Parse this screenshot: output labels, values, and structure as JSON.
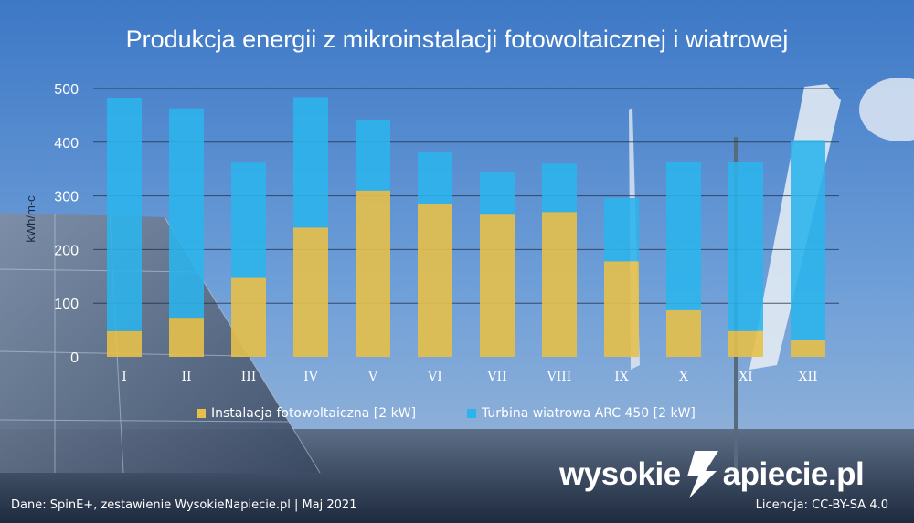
{
  "chart_data": {
    "type": "bar",
    "stacked": true,
    "title": "Produkcja energii z mikroinstalacji fotowoltaicznej i wiatrowej",
    "ylabel": "kWh/m-c",
    "xlabel": "",
    "ylim": [
      0,
      500
    ],
    "yticks": [
      0,
      100,
      200,
      300,
      400,
      500
    ],
    "grid": true,
    "legend_position": "bottom",
    "categories": [
      "I",
      "II",
      "III",
      "IV",
      "V",
      "VI",
      "VII",
      "VIII",
      "IX",
      "X",
      "XI",
      "XII"
    ],
    "series": [
      {
        "name": "Instalacja fotowoltaiczna [2 kW]",
        "color": "#e6c04a",
        "values": [
          48,
          73,
          147,
          241,
          310,
          285,
          265,
          270,
          178,
          87,
          48,
          32
        ]
      },
      {
        "name": "Turbina wiatrowa ARC 450 [2 kW]",
        "color": "#2bb4ec",
        "values": [
          435,
          390,
          215,
          243,
          132,
          98,
          80,
          90,
          118,
          277,
          315,
          372
        ]
      }
    ]
  },
  "footer": {
    "source": "Dane: SpinE+, zestawienie WysokieNapiecie.pl  |  Maj 2021",
    "license": "Licencja: CC-BY-SA 4.0"
  },
  "logo": {
    "left": "wysokie",
    "right": "apiecie.pl"
  }
}
